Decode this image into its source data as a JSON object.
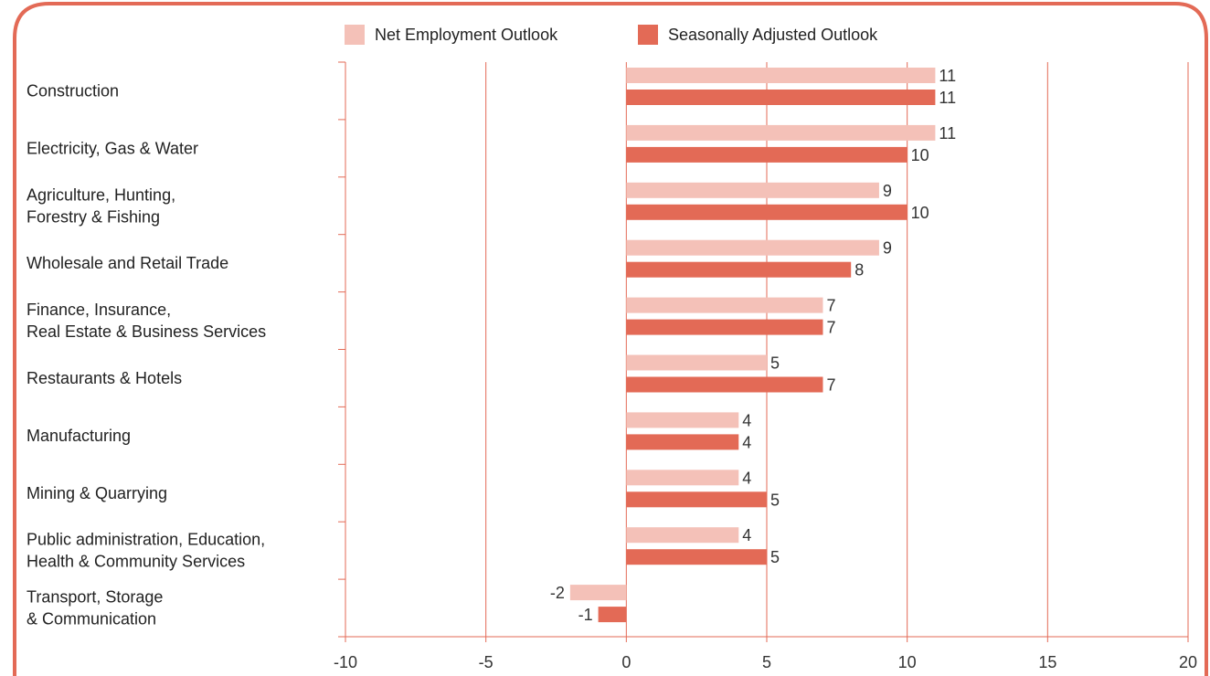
{
  "chart_data": {
    "type": "bar",
    "orientation": "horizontal",
    "categories": [
      [
        "Construction"
      ],
      [
        "Electricity, Gas & Water"
      ],
      [
        "Agriculture, Hunting,",
        "Forestry & Fishing"
      ],
      [
        "Wholesale and Retail Trade"
      ],
      [
        "Finance, Insurance,",
        "Real Estate & Business Services"
      ],
      [
        "Restaurants & Hotels"
      ],
      [
        "Manufacturing"
      ],
      [
        "Mining & Quarrying"
      ],
      [
        "Public administration, Education,",
        "Health & Community Services"
      ],
      [
        "Transport, Storage",
        "& Communication"
      ]
    ],
    "series": [
      {
        "name": "Net Employment Outlook",
        "color": "#f4c1b8",
        "values": [
          11,
          11,
          9,
          9,
          7,
          5,
          4,
          4,
          4,
          -2
        ]
      },
      {
        "name": "Seasonally Adjusted Outlook",
        "color": "#e36a56",
        "values": [
          11,
          10,
          10,
          8,
          7,
          7,
          4,
          5,
          5,
          -1
        ]
      }
    ],
    "xlim": [
      -10,
      20
    ],
    "xticks": [
      -10,
      -5,
      0,
      5,
      10,
      15,
      20
    ],
    "grid": true,
    "legend_position": "top",
    "accent_color": "#e36a56"
  }
}
